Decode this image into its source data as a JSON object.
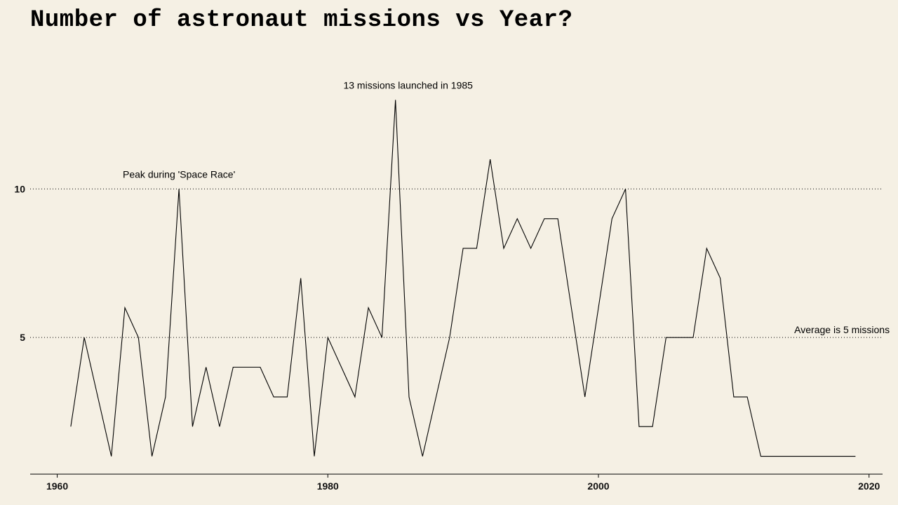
{
  "chart_data": {
    "type": "line",
    "title": "Number of astronaut missions vs Year?",
    "xlabel": "",
    "ylabel": "",
    "xlim": [
      1958,
      2021
    ],
    "ylim": [
      0.4,
      14
    ],
    "x_ticks": [
      1960,
      1980,
      2000,
      2020
    ],
    "y_ticks": [
      5,
      10
    ],
    "grid": "dotted horizontal lines at y ticks",
    "line_color": "#000000",
    "background_color": "#f5f0e4",
    "series": [
      {
        "x": [
          1961,
          1962,
          1963,
          1964,
          1965,
          1966,
          1967,
          1968,
          1969,
          1970,
          1971,
          1972,
          1973,
          1974,
          1975,
          1976,
          1977,
          1978,
          1979,
          1980,
          1981,
          1982,
          1983,
          1984,
          1985,
          1986,
          1987,
          1988,
          1989,
          1990,
          1991,
          1992,
          1993,
          1994,
          1995,
          1996,
          1997,
          1998,
          1999,
          2000,
          2001,
          2002,
          2003,
          2004,
          2005,
          2006,
          2007,
          2008,
          2009,
          2010,
          2011,
          2012,
          2013,
          2014,
          2015,
          2016,
          2017,
          2018,
          2019
        ],
        "values": [
          2,
          5,
          3,
          1,
          6,
          5,
          1,
          3,
          10,
          2,
          4,
          2,
          4,
          4,
          4,
          3,
          3,
          7,
          1,
          5,
          4,
          3,
          6,
          5,
          13,
          3,
          1,
          3,
          5,
          8,
          8,
          11,
          8,
          9,
          8,
          9,
          9,
          6,
          3,
          6,
          9,
          10,
          2,
          2,
          5,
          5,
          5,
          8,
          7,
          3,
          3,
          1,
          1,
          1,
          1,
          1,
          1,
          1,
          1
        ]
      }
    ],
    "annotations": [
      {
        "text": "Peak during 'Space Race'",
        "x": 1969,
        "y": 10
      },
      {
        "text": "13 missions launched in 1985",
        "x": 1985,
        "y": 13
      },
      {
        "text": "Average is 5 missions",
        "x": 2018,
        "y": 5
      }
    ]
  }
}
